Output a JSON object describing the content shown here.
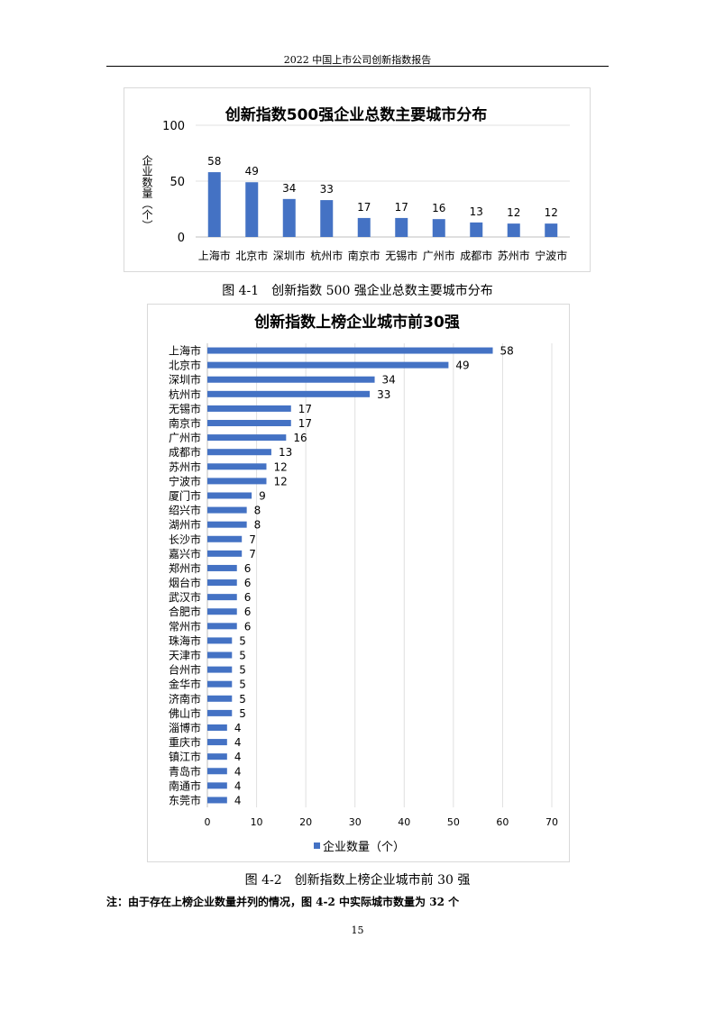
{
  "header": {
    "title": "2022 中国上市公司创新指数报告"
  },
  "figure1": {
    "caption": "图 4-1　创新指数 500 强企业总数主要城市分布"
  },
  "figure2": {
    "caption": "图 4-2　创新指数上榜企业城市前 30 强"
  },
  "note": "注：由于存在上榜企业数量并列的情况，图 4-2 中实际城市数量为 32 个",
  "page_number": "15",
  "chart_data": [
    {
      "type": "bar",
      "title": "创新指数500强企业总数主要城市分布",
      "ylabel": "企业数量（个）",
      "xlabel": "",
      "categories": [
        "上海市",
        "北京市",
        "深圳市",
        "杭州市",
        "南京市",
        "无锡市",
        "广州市",
        "成都市",
        "苏州市",
        "宁波市"
      ],
      "values": [
        58,
        49,
        34,
        33,
        17,
        17,
        16,
        13,
        12,
        12
      ],
      "yticks": [
        "0",
        "50",
        "100"
      ],
      "ylim": [
        0,
        100
      ],
      "grid": true,
      "color": "#4472c4"
    },
    {
      "type": "bar",
      "orientation": "horizontal",
      "title": "创新指数上榜企业城市前30强",
      "categories": [
        "上海市",
        "北京市",
        "深圳市",
        "杭州市",
        "无锡市",
        "南京市",
        "广州市",
        "成都市",
        "苏州市",
        "宁波市",
        "厦门市",
        "绍兴市",
        "湖州市",
        "长沙市",
        "嘉兴市",
        "郑州市",
        "烟台市",
        "武汉市",
        "合肥市",
        "常州市",
        "珠海市",
        "天津市",
        "台州市",
        "金华市",
        "济南市",
        "佛山市",
        "淄博市",
        "重庆市",
        "镇江市",
        "青岛市",
        "南通市",
        "东莞市"
      ],
      "values": [
        58,
        49,
        34,
        33,
        17,
        17,
        16,
        13,
        12,
        12,
        9,
        8,
        8,
        7,
        7,
        6,
        6,
        6,
        6,
        6,
        5,
        5,
        5,
        5,
        5,
        5,
        4,
        4,
        4,
        4,
        4,
        4
      ],
      "xticks": [
        "0",
        "10",
        "20",
        "30",
        "40",
        "50",
        "60",
        "70"
      ],
      "xlim": [
        0,
        70
      ],
      "grid": true,
      "legend": {
        "label": "企业数量（个）",
        "placement": "bottom"
      },
      "color": "#4472c4"
    }
  ]
}
